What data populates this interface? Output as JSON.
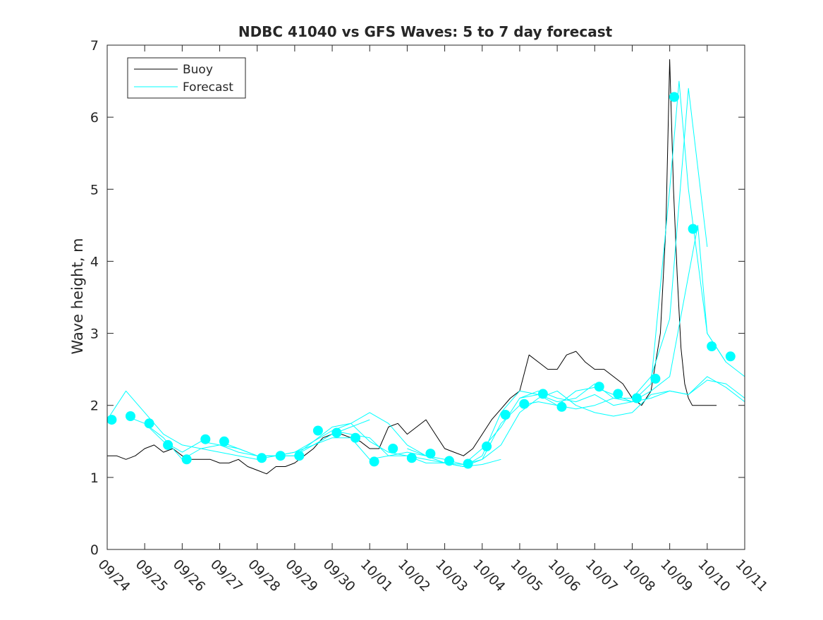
{
  "chart_data": {
    "type": "line",
    "title": "NDBC 41040 vs GFS Waves: 5 to 7 day forecast",
    "xlabel": "",
    "ylabel": "Wave height, m",
    "xlim": [
      0,
      17
    ],
    "ylim": [
      0,
      7
    ],
    "yticks": [
      0,
      1,
      2,
      3,
      4,
      5,
      6,
      7
    ],
    "xticklabels": [
      "09/24",
      "09/25",
      "09/26",
      "09/27",
      "09/28",
      "09/29",
      "09/30",
      "10/01",
      "10/02",
      "10/03",
      "10/04",
      "10/05",
      "10/06",
      "10/07",
      "10/08",
      "10/09",
      "10/10",
      "10/11"
    ],
    "legend": {
      "position": "top-left",
      "entries": [
        "Buoy",
        "Forecast"
      ]
    },
    "colors": {
      "buoy": "#000000",
      "forecast": "#00ffff",
      "axis": "#262626"
    },
    "series": [
      {
        "name": "Buoy",
        "x": [
          0.0,
          0.25,
          0.5,
          0.75,
          1.0,
          1.25,
          1.5,
          1.75,
          2.0,
          2.25,
          2.5,
          2.75,
          3.0,
          3.25,
          3.5,
          3.75,
          4.0,
          4.25,
          4.5,
          4.75,
          5.0,
          5.25,
          5.5,
          5.75,
          6.0,
          6.25,
          6.5,
          6.75,
          7.0,
          7.25,
          7.5,
          7.75,
          8.0,
          8.25,
          8.5,
          8.75,
          9.0,
          9.25,
          9.5,
          9.75,
          10.0,
          10.25,
          10.5,
          10.75,
          11.0,
          11.25,
          11.5,
          11.75,
          12.0,
          12.25,
          12.5,
          12.75,
          13.0,
          13.25,
          13.5,
          13.75,
          14.0,
          14.25,
          14.5,
          14.75,
          14.9,
          15.0,
          15.1,
          15.2,
          15.3,
          15.4,
          15.5,
          15.6,
          15.75,
          16.0,
          16.25
        ],
        "y": [
          1.3,
          1.3,
          1.25,
          1.3,
          1.4,
          1.45,
          1.35,
          1.4,
          1.3,
          1.25,
          1.25,
          1.25,
          1.2,
          1.2,
          1.25,
          1.15,
          1.1,
          1.05,
          1.15,
          1.15,
          1.2,
          1.3,
          1.4,
          1.55,
          1.6,
          1.6,
          1.55,
          1.5,
          1.4,
          1.4,
          1.7,
          1.75,
          1.6,
          1.7,
          1.8,
          1.6,
          1.4,
          1.35,
          1.3,
          1.4,
          1.6,
          1.8,
          1.95,
          2.1,
          2.2,
          2.7,
          2.6,
          2.5,
          2.5,
          2.7,
          2.75,
          2.6,
          2.5,
          2.5,
          2.4,
          2.3,
          2.1,
          2.0,
          2.2,
          3.0,
          4.5,
          6.8,
          5.0,
          3.8,
          2.8,
          2.3,
          2.1,
          2.0,
          2.0,
          2.0,
          2.0
        ]
      },
      {
        "name": "Forecast run 1",
        "x": [
          0.0,
          0.5,
          1.0,
          1.5,
          2.0,
          2.5,
          3.0,
          3.5,
          4.0,
          4.5,
          5.0,
          5.5,
          6.0,
          6.5,
          7.0
        ],
        "y": [
          1.8,
          2.2,
          1.9,
          1.6,
          1.45,
          1.4,
          1.35,
          1.3,
          1.25,
          1.3,
          1.35,
          1.45,
          1.6,
          1.7,
          1.8
        ]
      },
      {
        "name": "Forecast run 2",
        "x": [
          0.5,
          1.0,
          1.5,
          2.0,
          2.5,
          3.0,
          3.5,
          4.0,
          4.5,
          5.0,
          5.5,
          6.0,
          6.5,
          7.0,
          7.5,
          8.0,
          8.5,
          9.0,
          9.5,
          10.0,
          10.5
        ],
        "y": [
          1.85,
          1.75,
          1.5,
          1.35,
          1.5,
          1.45,
          1.4,
          1.3,
          1.3,
          1.35,
          1.5,
          1.7,
          1.75,
          1.9,
          1.75,
          1.45,
          1.3,
          1.2,
          1.15,
          1.18,
          1.25
        ]
      },
      {
        "name": "Forecast run 3",
        "x": [
          1.0,
          1.5,
          2.0,
          2.5,
          3.0,
          3.5,
          4.0,
          4.5,
          5.0,
          5.5,
          6.0,
          6.5,
          7.0,
          7.5,
          8.0,
          8.5,
          9.0,
          9.5,
          10.0,
          10.5,
          11.0,
          11.5,
          12.0,
          12.5,
          13.0,
          13.5,
          14.0,
          14.5,
          15.0,
          15.25,
          15.5,
          16.0
        ],
        "y": [
          1.75,
          1.55,
          1.25,
          1.4,
          1.45,
          1.35,
          1.3,
          1.3,
          1.3,
          1.45,
          1.55,
          1.55,
          1.25,
          1.3,
          1.3,
          1.2,
          1.2,
          1.15,
          1.3,
          1.9,
          2.2,
          2.15,
          2.05,
          2.1,
          2.3,
          2.1,
          2.1,
          2.4,
          3.2,
          4.8,
          6.4,
          4.2
        ]
      },
      {
        "name": "Forecast run 4",
        "x": [
          3.0,
          3.5,
          4.0,
          4.5,
          5.0,
          5.5,
          6.0,
          6.5,
          7.0,
          7.5,
          8.0,
          8.5,
          9.0,
          9.5,
          10.0,
          10.5,
          11.0,
          11.5,
          12.0,
          12.5,
          13.0,
          13.5,
          14.0,
          14.5,
          15.0,
          15.25,
          15.5,
          16.0,
          16.5
        ],
        "y": [
          1.5,
          1.4,
          1.3,
          1.3,
          1.3,
          1.5,
          1.65,
          1.75,
          1.5,
          1.35,
          1.3,
          1.25,
          1.2,
          1.18,
          1.4,
          1.7,
          2.1,
          2.15,
          2.0,
          2.2,
          2.25,
          2.15,
          2.05,
          2.3,
          5.0,
          6.5,
          5.0,
          3.0,
          2.6
        ]
      },
      {
        "name": "Forecast run 5",
        "x": [
          6.0,
          6.5,
          7.0,
          7.5,
          8.0,
          8.5,
          9.0,
          9.5,
          10.0,
          10.5,
          11.0,
          11.5,
          12.0,
          12.5,
          13.0,
          13.5,
          14.0,
          14.5,
          15.0,
          15.5,
          15.75,
          16.0,
          16.5,
          17.0
        ],
        "y": [
          1.65,
          1.6,
          1.55,
          1.3,
          1.35,
          1.3,
          1.25,
          1.18,
          1.25,
          1.75,
          2.0,
          2.05,
          2.0,
          1.95,
          2.0,
          2.1,
          2.05,
          2.2,
          2.4,
          3.8,
          4.5,
          3.0,
          2.6,
          2.4
        ]
      },
      {
        "name": "Forecast run 6",
        "x": [
          8.0,
          8.5,
          9.0,
          9.5,
          10.0,
          10.5,
          11.0,
          11.5,
          12.0,
          12.5,
          13.0,
          13.5,
          14.0,
          14.5,
          15.0,
          15.5,
          16.0,
          16.5,
          17.0
        ],
        "y": [
          1.4,
          1.3,
          1.2,
          1.15,
          1.25,
          1.45,
          1.9,
          2.1,
          2.2,
          2.0,
          1.9,
          1.85,
          1.9,
          2.15,
          2.2,
          2.15,
          2.35,
          2.3,
          2.1
        ]
      },
      {
        "name": "Forecast run 7",
        "x": [
          11.0,
          11.5,
          12.0,
          12.5,
          13.0,
          13.5,
          14.0,
          14.5,
          15.0,
          15.5,
          16.0,
          16.5,
          17.0
        ],
        "y": [
          2.1,
          2.2,
          2.1,
          2.05,
          2.15,
          2.0,
          2.05,
          2.1,
          2.2,
          2.15,
          2.4,
          2.25,
          2.05
        ]
      }
    ],
    "forecast_markers": {
      "x": [
        0.12,
        0.62,
        1.12,
        1.62,
        2.12,
        2.62,
        3.12,
        4.12,
        4.62,
        5.12,
        5.62,
        6.12,
        6.62,
        7.12,
        7.62,
        8.12,
        8.62,
        9.12,
        9.62,
        10.12,
        10.62,
        11.12,
        11.62,
        12.12,
        13.12,
        13.62,
        14.12,
        14.62,
        15.12,
        15.62,
        16.12,
        16.62
      ],
      "y": [
        1.8,
        1.85,
        1.75,
        1.45,
        1.25,
        1.53,
        1.5,
        1.27,
        1.3,
        1.3,
        1.65,
        1.62,
        1.55,
        1.22,
        1.4,
        1.27,
        1.33,
        1.23,
        1.19,
        1.43,
        1.87,
        2.02,
        2.16,
        1.98,
        2.26,
        2.16,
        2.1,
        2.37,
        6.28,
        4.45,
        2.82,
        2.68
      ]
    }
  }
}
